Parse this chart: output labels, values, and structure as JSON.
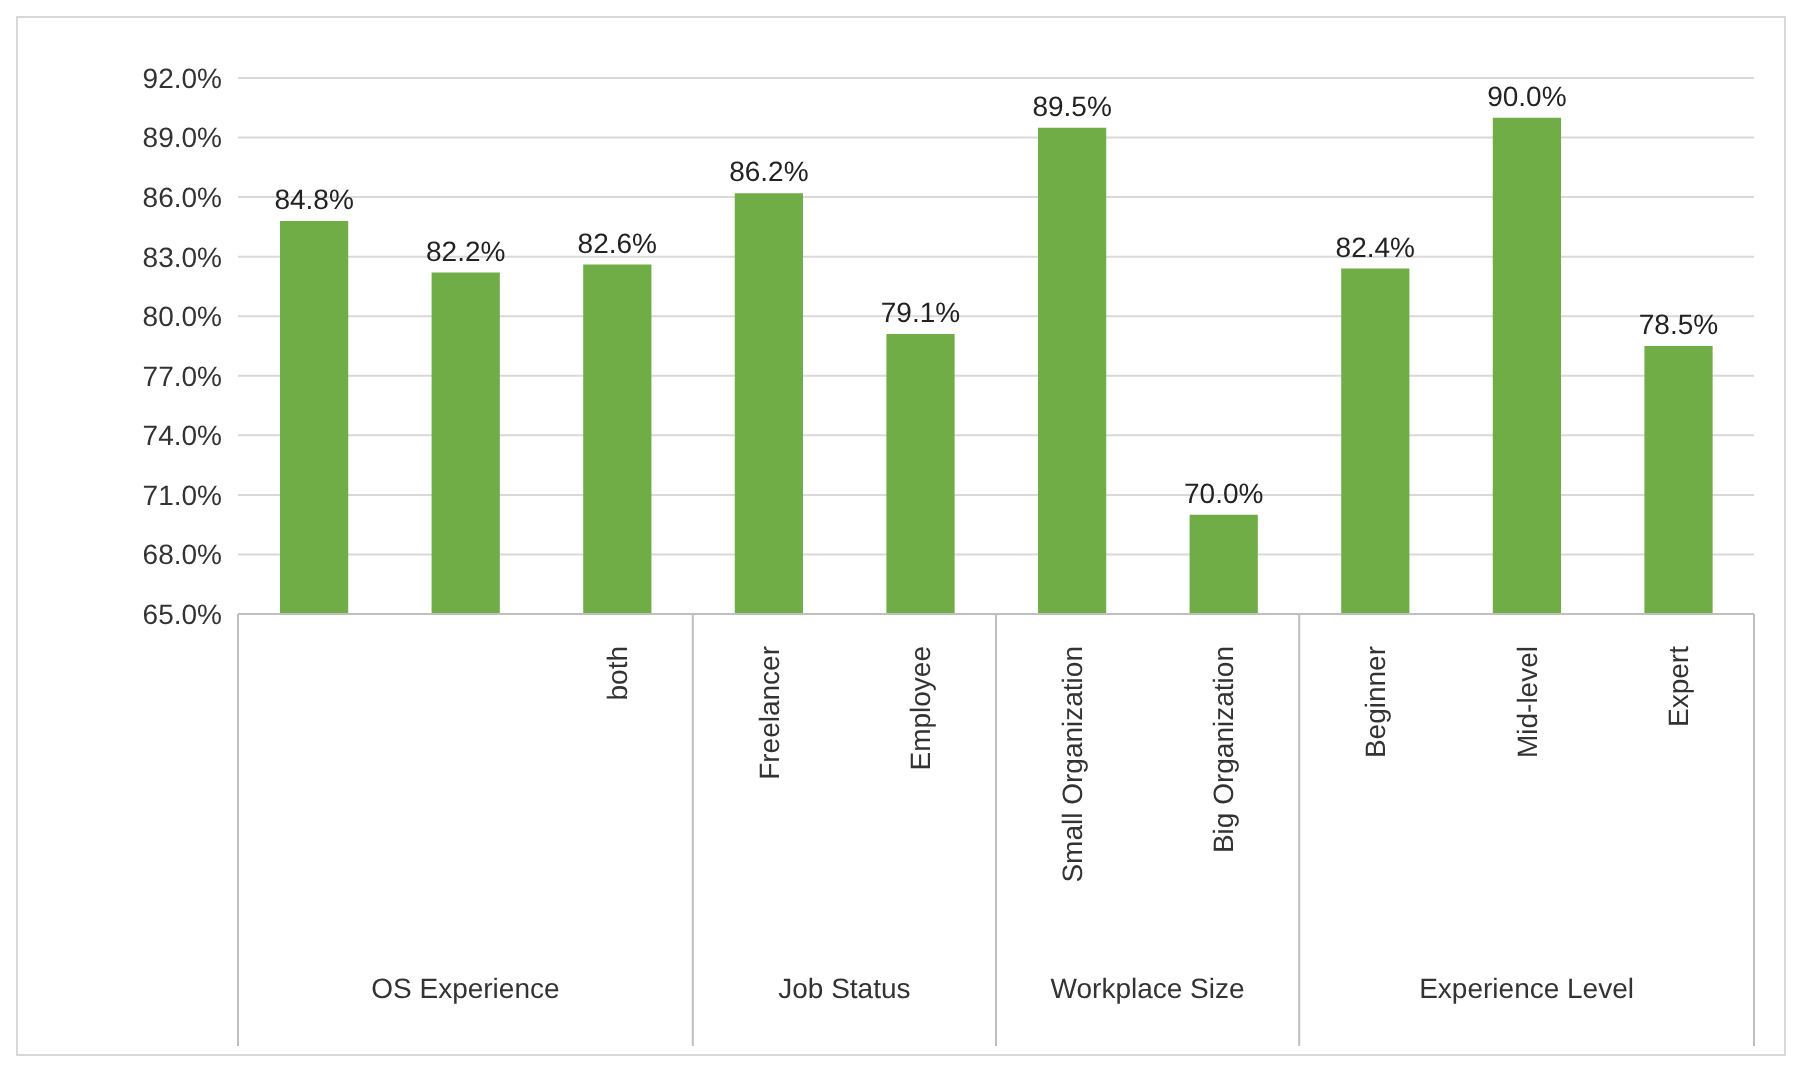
{
  "chart_data": {
    "type": "bar",
    "categories": [
      null,
      null,
      "both",
      "Freelancer",
      "Employee",
      "Small Organization",
      "Big Organization",
      "Beginner",
      "Mid-level",
      "Expert"
    ],
    "values": [
      84.8,
      82.2,
      82.6,
      86.2,
      79.1,
      89.5,
      70.0,
      82.4,
      90.0,
      78.5
    ],
    "value_labels": [
      "84.8%",
      "82.2%",
      "82.6%",
      "86.2%",
      "79.1%",
      "89.5%",
      "70.0%",
      "82.4%",
      "90.0%",
      "78.5%"
    ],
    "color": "#70ad47",
    "ylim": [
      65,
      92
    ],
    "yticks": [
      {
        "value": 65,
        "label": "65.0%"
      },
      {
        "value": 68,
        "label": "68.0%"
      },
      {
        "value": 71,
        "label": "71.0%"
      },
      {
        "value": 74,
        "label": "74.0%"
      },
      {
        "value": 77,
        "label": "77.0%"
      },
      {
        "value": 80,
        "label": "80.0%"
      },
      {
        "value": 83,
        "label": "83.0%"
      },
      {
        "value": 86,
        "label": "86.0%"
      },
      {
        "value": 89,
        "label": "89.0%"
      },
      {
        "value": 92,
        "label": "92.0%"
      }
    ],
    "grid": "y",
    "annotations": [
      "OS Experience",
      "Job Status",
      "Workplace Size",
      "Experience Level"
    ]
  }
}
